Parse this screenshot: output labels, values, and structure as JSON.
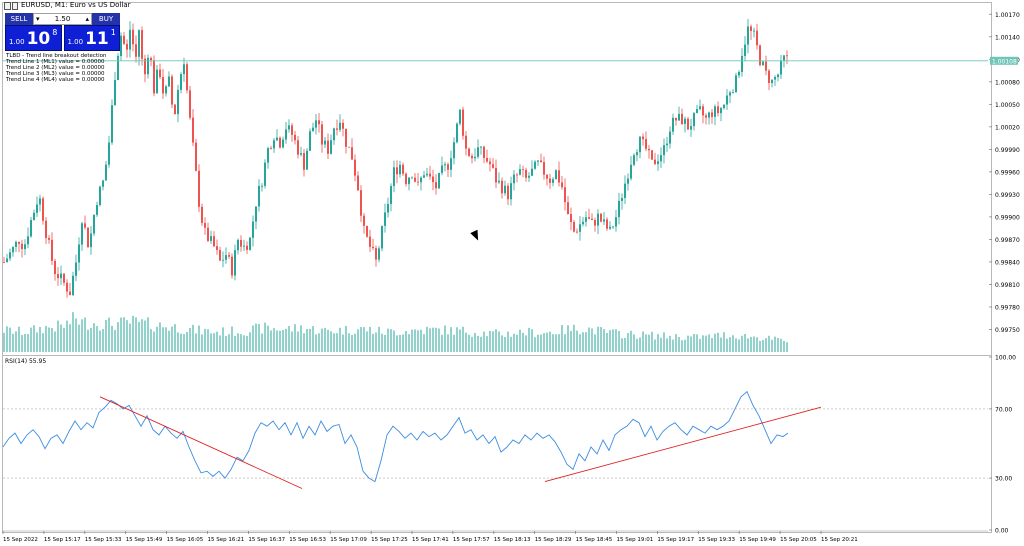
{
  "window": {
    "title": "EURUSD, M1: Euro vs US Dollar"
  },
  "trade_panel": {
    "sell_label": "SELL",
    "buy_label": "BUY",
    "lot_value": "1.50",
    "sell_lot": "1.00",
    "buy_lot": "1.00",
    "sell_price_big": "10",
    "sell_price_sup": "8",
    "buy_price_big": "11",
    "buy_price_sup": "1",
    "sell_color": "#2433a8",
    "buy_color": "#2433a8"
  },
  "indicator": {
    "lines": [
      "TLBD - Trend line breakout detection",
      "Trend Line 1 (ML1) value = 0.00000",
      "Trend Line 2 (ML2) value = 0.00000",
      "Trend Line 3 (ML3) value = 0.00000",
      "Trend Line 4 (ML4) value = 0.00000"
    ]
  },
  "rsi": {
    "label": "RSI(14) 55.95"
  },
  "colors": {
    "bull": "#26a69a",
    "bear": "#ef5350",
    "rsi_line": "#3c8ce0",
    "trend": "#e02020",
    "bid_line": "#6ec5b8"
  },
  "chart_data": [
    {
      "type": "candlestick",
      "symbol": "EURUSD",
      "timeframe": "M1",
      "ylim": [
        0.9972,
        1.00185
      ],
      "yticks": [
        "1.00170",
        "1.00140",
        "1.00110",
        "1.00080",
        "1.00050",
        "1.00020",
        "0.99990",
        "0.99960",
        "0.99930",
        "0.99900",
        "0.99870",
        "0.99840",
        "0.99810",
        "0.99780",
        "0.99750"
      ],
      "current_price": "1.00108",
      "xticks": [
        "15 Sep 2022",
        "15 Sep 15:17",
        "15 Sep 15:33",
        "15 Sep 15:49",
        "15 Sep 16:05",
        "15 Sep 16:21",
        "15 Sep 16:37",
        "15 Sep 16:53",
        "15 Sep 17:09",
        "15 Sep 17:25",
        "15 Sep 17:41",
        "15 Sep 17:57",
        "15 Sep 18:13",
        "15 Sep 18:29",
        "15 Sep 18:45",
        "15 Sep 19:01",
        "15 Sep 19:17",
        "15 Sep 19:33",
        "15 Sep 19:49",
        "15 Sep 20:05",
        "15 Sep 20:21"
      ],
      "close_path": [
        [
          0,
          0.9984
        ],
        [
          8,
          0.99855
        ],
        [
          15,
          0.9987
        ],
        [
          20,
          0.9986
        ],
        [
          27,
          0.99895
        ],
        [
          35,
          0.9993
        ],
        [
          42,
          0.9988
        ],
        [
          50,
          0.9983
        ],
        [
          58,
          0.99815
        ],
        [
          66,
          0.998
        ],
        [
          72,
          0.9984
        ],
        [
          78,
          0.999
        ],
        [
          85,
          0.9986
        ],
        [
          92,
          0.9992
        ],
        [
          100,
          0.9995
        ],
        [
          106,
          1.0001
        ],
        [
          110,
          1.0008
        ],
        [
          114,
          1.0012
        ],
        [
          118,
          1.0015
        ],
        [
          122,
          1.0011
        ],
        [
          127,
          1.0016
        ],
        [
          131,
          1.001
        ],
        [
          135,
          1.0015
        ],
        [
          140,
          1.0008
        ],
        [
          145,
          1.0013
        ],
        [
          150,
          1.0007
        ],
        [
          155,
          1.001
        ],
        [
          160,
          1.0006
        ],
        [
          165,
          1.0008
        ],
        [
          170,
          1.0003
        ],
        [
          175,
          1.0008
        ],
        [
          180,
          1.0011
        ],
        [
          185,
          1.0004
        ],
        [
          190,
          0.9998
        ],
        [
          195,
          0.9992
        ],
        [
          200,
          0.9988
        ],
        [
          205,
          0.9987
        ],
        [
          210,
          0.9986
        ],
        [
          216,
          0.9984
        ],
        [
          222,
          0.9985
        ],
        [
          228,
          0.9983
        ],
        [
          234,
          0.9987
        ],
        [
          240,
          0.9986
        ],
        [
          246,
          0.9987
        ],
        [
          252,
          0.9992
        ],
        [
          258,
          0.9995
        ],
        [
          264,
          0.9999
        ],
        [
          270,
          1.0001
        ],
        [
          276,
          1.0
        ],
        [
          282,
          1.0002
        ],
        [
          288,
          1.0001
        ],
        [
          294,
          0.9999
        ],
        [
          300,
          0.9997
        ],
        [
          306,
          1.0001
        ],
        [
          312,
          1.0003
        ],
        [
          318,
          1.0
        ],
        [
          324,
          0.9999
        ],
        [
          330,
          1.0002
        ],
        [
          336,
          1.0003
        ],
        [
          342,
          1.0
        ],
        [
          348,
          0.9998
        ],
        [
          354,
          0.9994
        ],
        [
          360,
          0.9988
        ],
        [
          366,
          0.9986
        ],
        [
          372,
          0.9984
        ],
        [
          378,
          0.9988
        ],
        [
          384,
          0.9992
        ],
        [
          390,
          0.9996
        ],
        [
          396,
          0.9997
        ],
        [
          402,
          0.9995
        ],
        [
          408,
          0.9996
        ],
        [
          414,
          0.9994
        ],
        [
          420,
          0.9996
        ],
        [
          426,
          0.9995
        ],
        [
          432,
          0.9994
        ],
        [
          438,
          0.9996
        ],
        [
          444,
          0.9997
        ],
        [
          450,
          1.0
        ],
        [
          456,
          1.0004
        ],
        [
          462,
          0.9999
        ],
        [
          468,
          0.9998
        ],
        [
          474,
          0.9999
        ],
        [
          480,
          0.9998
        ],
        [
          486,
          0.9997
        ],
        [
          492,
          0.9995
        ],
        [
          498,
          0.9994
        ],
        [
          504,
          0.9993
        ],
        [
          510,
          0.9995
        ],
        [
          516,
          0.9996
        ],
        [
          522,
          0.9995
        ],
        [
          528,
          0.9996
        ],
        [
          534,
          0.9997
        ],
        [
          540,
          0.9996
        ],
        [
          546,
          0.9995
        ],
        [
          552,
          0.9996
        ],
        [
          558,
          0.9994
        ],
        [
          564,
          0.999
        ],
        [
          570,
          0.9988
        ],
        [
          576,
          0.9989
        ],
        [
          582,
          0.999
        ],
        [
          588,
          0.9989
        ],
        [
          594,
          0.999
        ],
        [
          600,
          0.9989
        ],
        [
          606,
          0.9988
        ],
        [
          612,
          0.999
        ],
        [
          618,
          0.9993
        ],
        [
          624,
          0.9996
        ],
        [
          630,
          0.9999
        ],
        [
          636,
          1.0
        ],
        [
          642,
          0.9999
        ],
        [
          648,
          0.9997
        ],
        [
          654,
          0.9998
        ],
        [
          660,
          0.9999
        ],
        [
          666,
          1.0002
        ],
        [
          672,
          1.0003
        ],
        [
          678,
          1.0003
        ],
        [
          684,
          1.0002
        ],
        [
          690,
          1.0003
        ],
        [
          696,
          1.0004
        ],
        [
          702,
          1.0003
        ],
        [
          708,
          1.0004
        ],
        [
          714,
          1.0004
        ],
        [
          720,
          1.0005
        ],
        [
          726,
          1.0007
        ],
        [
          732,
          1.0008
        ],
        [
          738,
          1.0012
        ],
        [
          744,
          1.0015
        ],
        [
          750,
          1.0014
        ],
        [
          756,
          1.0011
        ],
        [
          762,
          1.0009
        ],
        [
          768,
          1.0008
        ],
        [
          774,
          1.0009
        ],
        [
          780,
          1.0011
        ],
        [
          785,
          1.00108
        ]
      ],
      "volume": [
        [
          0,
          22
        ],
        [
          20,
          20
        ],
        [
          40,
          24
        ],
        [
          60,
          26
        ],
        [
          72,
          34
        ],
        [
          76,
          30
        ],
        [
          90,
          29
        ],
        [
          110,
          28
        ],
        [
          130,
          30
        ],
        [
          150,
          27
        ],
        [
          170,
          25
        ],
        [
          190,
          22
        ],
        [
          210,
          20
        ],
        [
          240,
          21
        ],
        [
          260,
          24
        ],
        [
          280,
          23
        ],
        [
          300,
          24
        ],
        [
          320,
          21
        ],
        [
          340,
          22
        ],
        [
          360,
          23
        ],
        [
          380,
          20
        ],
        [
          400,
          21
        ],
        [
          420,
          22
        ],
        [
          440,
          22
        ],
        [
          460,
          21
        ],
        [
          480,
          19
        ],
        [
          500,
          18
        ],
        [
          520,
          20
        ],
        [
          540,
          19
        ],
        [
          560,
          22
        ],
        [
          580,
          24
        ],
        [
          600,
          20
        ],
        [
          620,
          18
        ],
        [
          640,
          17
        ],
        [
          660,
          16
        ],
        [
          680,
          15
        ],
        [
          700,
          15
        ],
        [
          720,
          17
        ],
        [
          740,
          16
        ],
        [
          760,
          14
        ],
        [
          785,
          11
        ]
      ]
    },
    {
      "type": "line",
      "name": "RSI(14)",
      "ylim": [
        0,
        100
      ],
      "yticks": [
        "100.00",
        "70.00",
        "30.00",
        "0.00"
      ],
      "levels": [
        70,
        30
      ],
      "series": [
        {
          "values": [
            [
              0,
              48
            ],
            [
              6,
              53
            ],
            [
              12,
              56
            ],
            [
              18,
              50
            ],
            [
              24,
              55
            ],
            [
              30,
              58
            ],
            [
              36,
              54
            ],
            [
              42,
              47
            ],
            [
              48,
              53
            ],
            [
              54,
              55
            ],
            [
              60,
              50
            ],
            [
              66,
              57
            ],
            [
              72,
              63
            ],
            [
              78,
              58
            ],
            [
              84,
              62
            ],
            [
              90,
              59
            ],
            [
              96,
              68
            ],
            [
              102,
              71
            ],
            [
              108,
              75
            ],
            [
              114,
              73
            ],
            [
              120,
              70
            ],
            [
              126,
              72
            ],
            [
              132,
              66
            ],
            [
              138,
              60
            ],
            [
              144,
              66
            ],
            [
              150,
              58
            ],
            [
              156,
              55
            ],
            [
              162,
              60
            ],
            [
              168,
              56
            ],
            [
              174,
              53
            ],
            [
              180,
              57
            ],
            [
              186,
              48
            ],
            [
              192,
              40
            ],
            [
              198,
              33
            ],
            [
              204,
              34
            ],
            [
              210,
              31
            ],
            [
              216,
              34
            ],
            [
              222,
              30
            ],
            [
              228,
              35
            ],
            [
              234,
              42
            ],
            [
              240,
              40
            ],
            [
              246,
              46
            ],
            [
              252,
              56
            ],
            [
              258,
              62
            ],
            [
              264,
              60
            ],
            [
              270,
              63
            ],
            [
              276,
              58
            ],
            [
              282,
              62
            ],
            [
              288,
              55
            ],
            [
              294,
              62
            ],
            [
              300,
              53
            ],
            [
              306,
              60
            ],
            [
              312,
              55
            ],
            [
              318,
              63
            ],
            [
              324,
              57
            ],
            [
              330,
              60
            ],
            [
              336,
              61
            ],
            [
              342,
              50
            ],
            [
              348,
              55
            ],
            [
              354,
              48
            ],
            [
              360,
              34
            ],
            [
              366,
              30
            ],
            [
              372,
              28
            ],
            [
              378,
              40
            ],
            [
              384,
              55
            ],
            [
              390,
              60
            ],
            [
              396,
              57
            ],
            [
              402,
              53
            ],
            [
              408,
              56
            ],
            [
              414,
              52
            ],
            [
              420,
              57
            ],
            [
              426,
              54
            ],
            [
              432,
              56
            ],
            [
              438,
              52
            ],
            [
              444,
              55
            ],
            [
              450,
              60
            ],
            [
              456,
              65
            ],
            [
              462,
              56
            ],
            [
              468,
              58
            ],
            [
              474,
              52
            ],
            [
              480,
              55
            ],
            [
              486,
              50
            ],
            [
              492,
              54
            ],
            [
              498,
              45
            ],
            [
              504,
              48
            ],
            [
              510,
              52
            ],
            [
              516,
              50
            ],
            [
              522,
              55
            ],
            [
              528,
              52
            ],
            [
              534,
              56
            ],
            [
              540,
              53
            ],
            [
              546,
              55
            ],
            [
              552,
              51
            ],
            [
              558,
              45
            ],
            [
              564,
              38
            ],
            [
              570,
              35
            ],
            [
              576,
              44
            ],
            [
              582,
              40
            ],
            [
              588,
              48
            ],
            [
              594,
              44
            ],
            [
              600,
              52
            ],
            [
              606,
              46
            ],
            [
              612,
              55
            ],
            [
              618,
              58
            ],
            [
              624,
              60
            ],
            [
              630,
              64
            ],
            [
              636,
              62
            ],
            [
              642,
              54
            ],
            [
              648,
              60
            ],
            [
              654,
              52
            ],
            [
              660,
              57
            ],
            [
              666,
              60
            ],
            [
              672,
              62
            ],
            [
              678,
              58
            ],
            [
              684,
              55
            ],
            [
              690,
              60
            ],
            [
              696,
              58
            ],
            [
              702,
              56
            ],
            [
              708,
              60
            ],
            [
              714,
              58
            ],
            [
              720,
              60
            ],
            [
              726,
              63
            ],
            [
              732,
              70
            ],
            [
              738,
              77
            ],
            [
              744,
              80
            ],
            [
              750,
              72
            ],
            [
              756,
              66
            ],
            [
              762,
              58
            ],
            [
              768,
              50
            ],
            [
              774,
              55
            ],
            [
              780,
              54
            ],
            [
              785,
              56
            ]
          ]
        }
      ]
    }
  ]
}
